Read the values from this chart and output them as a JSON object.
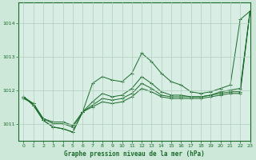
{
  "title": "Graphe pression niveau de la mer (hPa)",
  "background_color": "#cde8d8",
  "plot_background": "#d8ede4",
  "grid_color": "#b0ccbc",
  "line_color": "#1a6b2a",
  "xlim": [
    -0.5,
    23
  ],
  "ylim": [
    1010.5,
    1014.6
  ],
  "yticks": [
    1011,
    1012,
    1013,
    1014
  ],
  "xticks": [
    0,
    1,
    2,
    3,
    4,
    5,
    6,
    7,
    8,
    9,
    10,
    11,
    12,
    13,
    14,
    15,
    16,
    17,
    18,
    19,
    20,
    21,
    22,
    23
  ],
  "series": [
    {
      "y": [
        1011.8,
        1011.55,
        1011.1,
        1010.9,
        1010.85,
        1010.75,
        1011.35,
        1012.2,
        1012.4,
        1012.3,
        1012.25,
        1012.5,
        1013.1,
        1012.85,
        1012.5,
        1012.25,
        1012.15,
        1011.95,
        1011.9,
        1011.95,
        1012.05,
        1012.15,
        1014.1,
        1014.35
      ],
      "marker": "+"
    },
    {
      "y": [
        1011.8,
        1011.55,
        1011.1,
        1010.9,
        1010.85,
        1010.75,
        1011.35,
        1011.65,
        1011.9,
        1011.8,
        1011.85,
        1012.05,
        1012.4,
        1012.2,
        1011.95,
        1011.85,
        1011.85,
        1011.8,
        1011.8,
        1011.85,
        1011.95,
        1012.0,
        1012.05,
        1014.35
      ],
      "marker": "+"
    },
    {
      "y": [
        1011.8,
        1011.6,
        1011.15,
        1011.0,
        1011.0,
        1010.9,
        1011.35,
        1011.55,
        1011.75,
        1011.7,
        1011.75,
        1011.9,
        1012.2,
        1012.05,
        1011.85,
        1011.8,
        1011.8,
        1011.8,
        1011.8,
        1011.85,
        1011.9,
        1011.95,
        1011.95,
        1014.35
      ],
      "marker": "+"
    },
    {
      "y": [
        1011.75,
        1011.6,
        1011.15,
        1011.05,
        1011.05,
        1010.95,
        1011.35,
        1011.5,
        1011.65,
        1011.6,
        1011.65,
        1011.8,
        1012.05,
        1011.95,
        1011.8,
        1011.75,
        1011.75,
        1011.75,
        1011.75,
        1011.8,
        1011.85,
        1011.9,
        1011.9,
        1014.35
      ],
      "marker": "+"
    }
  ]
}
